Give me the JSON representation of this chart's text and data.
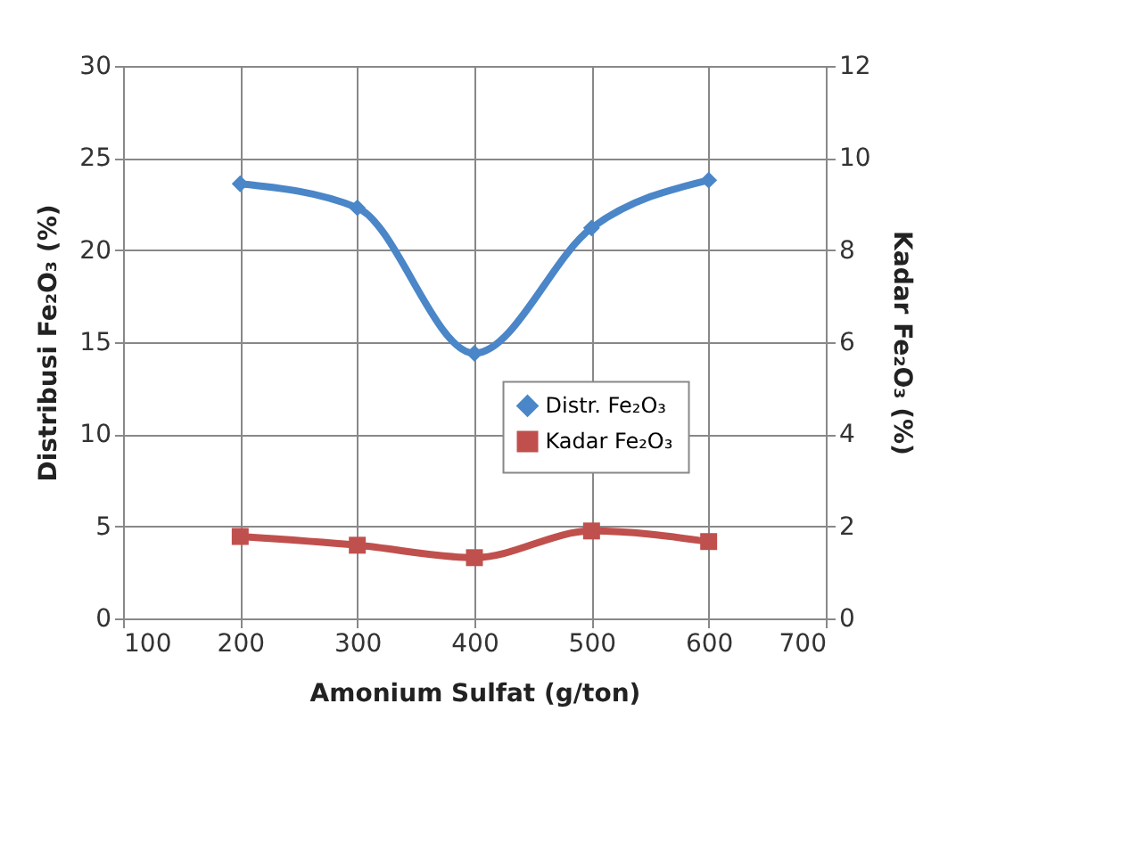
{
  "chart_data": {
    "type": "line",
    "xlabel": "Amonium Sulfat (g/ton)",
    "ylabel": "Distribusi Fe₂O₃ (%)",
    "y2label": "Kadar Fe₂O₃ (%)",
    "x": [
      200,
      300,
      400,
      500,
      600
    ],
    "series": [
      {
        "name": "Distr. Fe₂O₃",
        "color": "#4a86c8",
        "marker": "diamond",
        "values": [
          23.6,
          22.3,
          14.4,
          21.2,
          23.8
        ]
      },
      {
        "name": "Kadar Fe₂O₃",
        "color": "#c0504d",
        "marker": "square",
        "axis": "y2",
        "values": [
          1.78,
          1.59,
          1.32,
          1.9,
          1.67
        ]
      }
    ],
    "xlim": [
      100,
      700
    ],
    "xticks": [
      100,
      200,
      300,
      400,
      500,
      600,
      700
    ],
    "ylim": [
      0,
      30
    ],
    "yticks": [
      0,
      5,
      10,
      15,
      20,
      25,
      30
    ],
    "y2lim": [
      0,
      12
    ],
    "y2ticks": [
      0,
      2,
      4,
      6,
      8,
      10,
      12
    ],
    "grid": true,
    "legend": "right",
    "line_style": "solid"
  }
}
